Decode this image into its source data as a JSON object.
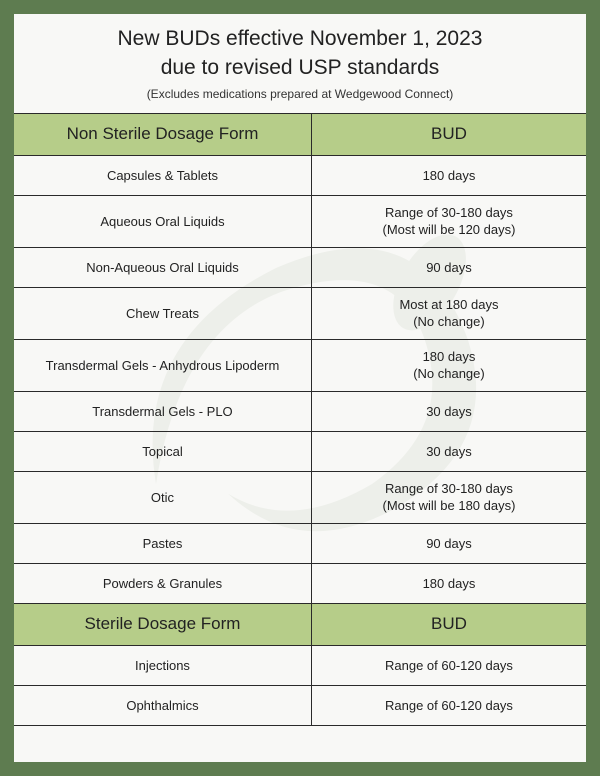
{
  "colors": {
    "page_border": "#5e7c50",
    "page_bg": "#f8f8f6",
    "header_bg": "#b6cd89",
    "cell_border": "#2a2a2a",
    "text": "#222222"
  },
  "title": {
    "line1": "New BUDs effective November 1, 2023",
    "line2": "due to revised USP standards",
    "subtitle": "(Excludes medications prepared at Wedgewood Connect)"
  },
  "section1": {
    "header_left": "Non Sterile Dosage Form",
    "header_right": "BUD",
    "rows": [
      {
        "form": "Capsules & Tablets",
        "bud": "180 days",
        "h": "short"
      },
      {
        "form": "Aqueous Oral Liquids",
        "bud": "Range of 30-180 days\n(Most will be 120 days)",
        "h": "tall"
      },
      {
        "form": "Non-Aqueous Oral Liquids",
        "bud": "90 days",
        "h": "short"
      },
      {
        "form": "Chew Treats",
        "bud": "Most at 180 days\n(No change)",
        "h": "tall"
      },
      {
        "form": "Transdermal Gels - Anhydrous Lipoderm",
        "bud": "180 days\n(No change)",
        "h": "tall"
      },
      {
        "form": "Transdermal Gels - PLO",
        "bud": "30 days",
        "h": "short"
      },
      {
        "form": "Topical",
        "bud": "30 days",
        "h": "short"
      },
      {
        "form": "Otic",
        "bud": "Range of 30-180 days\n(Most will be 180 days)",
        "h": "tall"
      },
      {
        "form": "Pastes",
        "bud": "90 days",
        "h": "short"
      },
      {
        "form": "Powders & Granules",
        "bud": "180 days",
        "h": "short"
      }
    ]
  },
  "section2": {
    "header_left": "Sterile Dosage Form",
    "header_right": "BUD",
    "rows": [
      {
        "form": "Injections",
        "bud": "Range of 60-120 days",
        "h": "short"
      },
      {
        "form": "Ophthalmics",
        "bud": "Range of 60-120 days",
        "h": "short"
      }
    ]
  }
}
